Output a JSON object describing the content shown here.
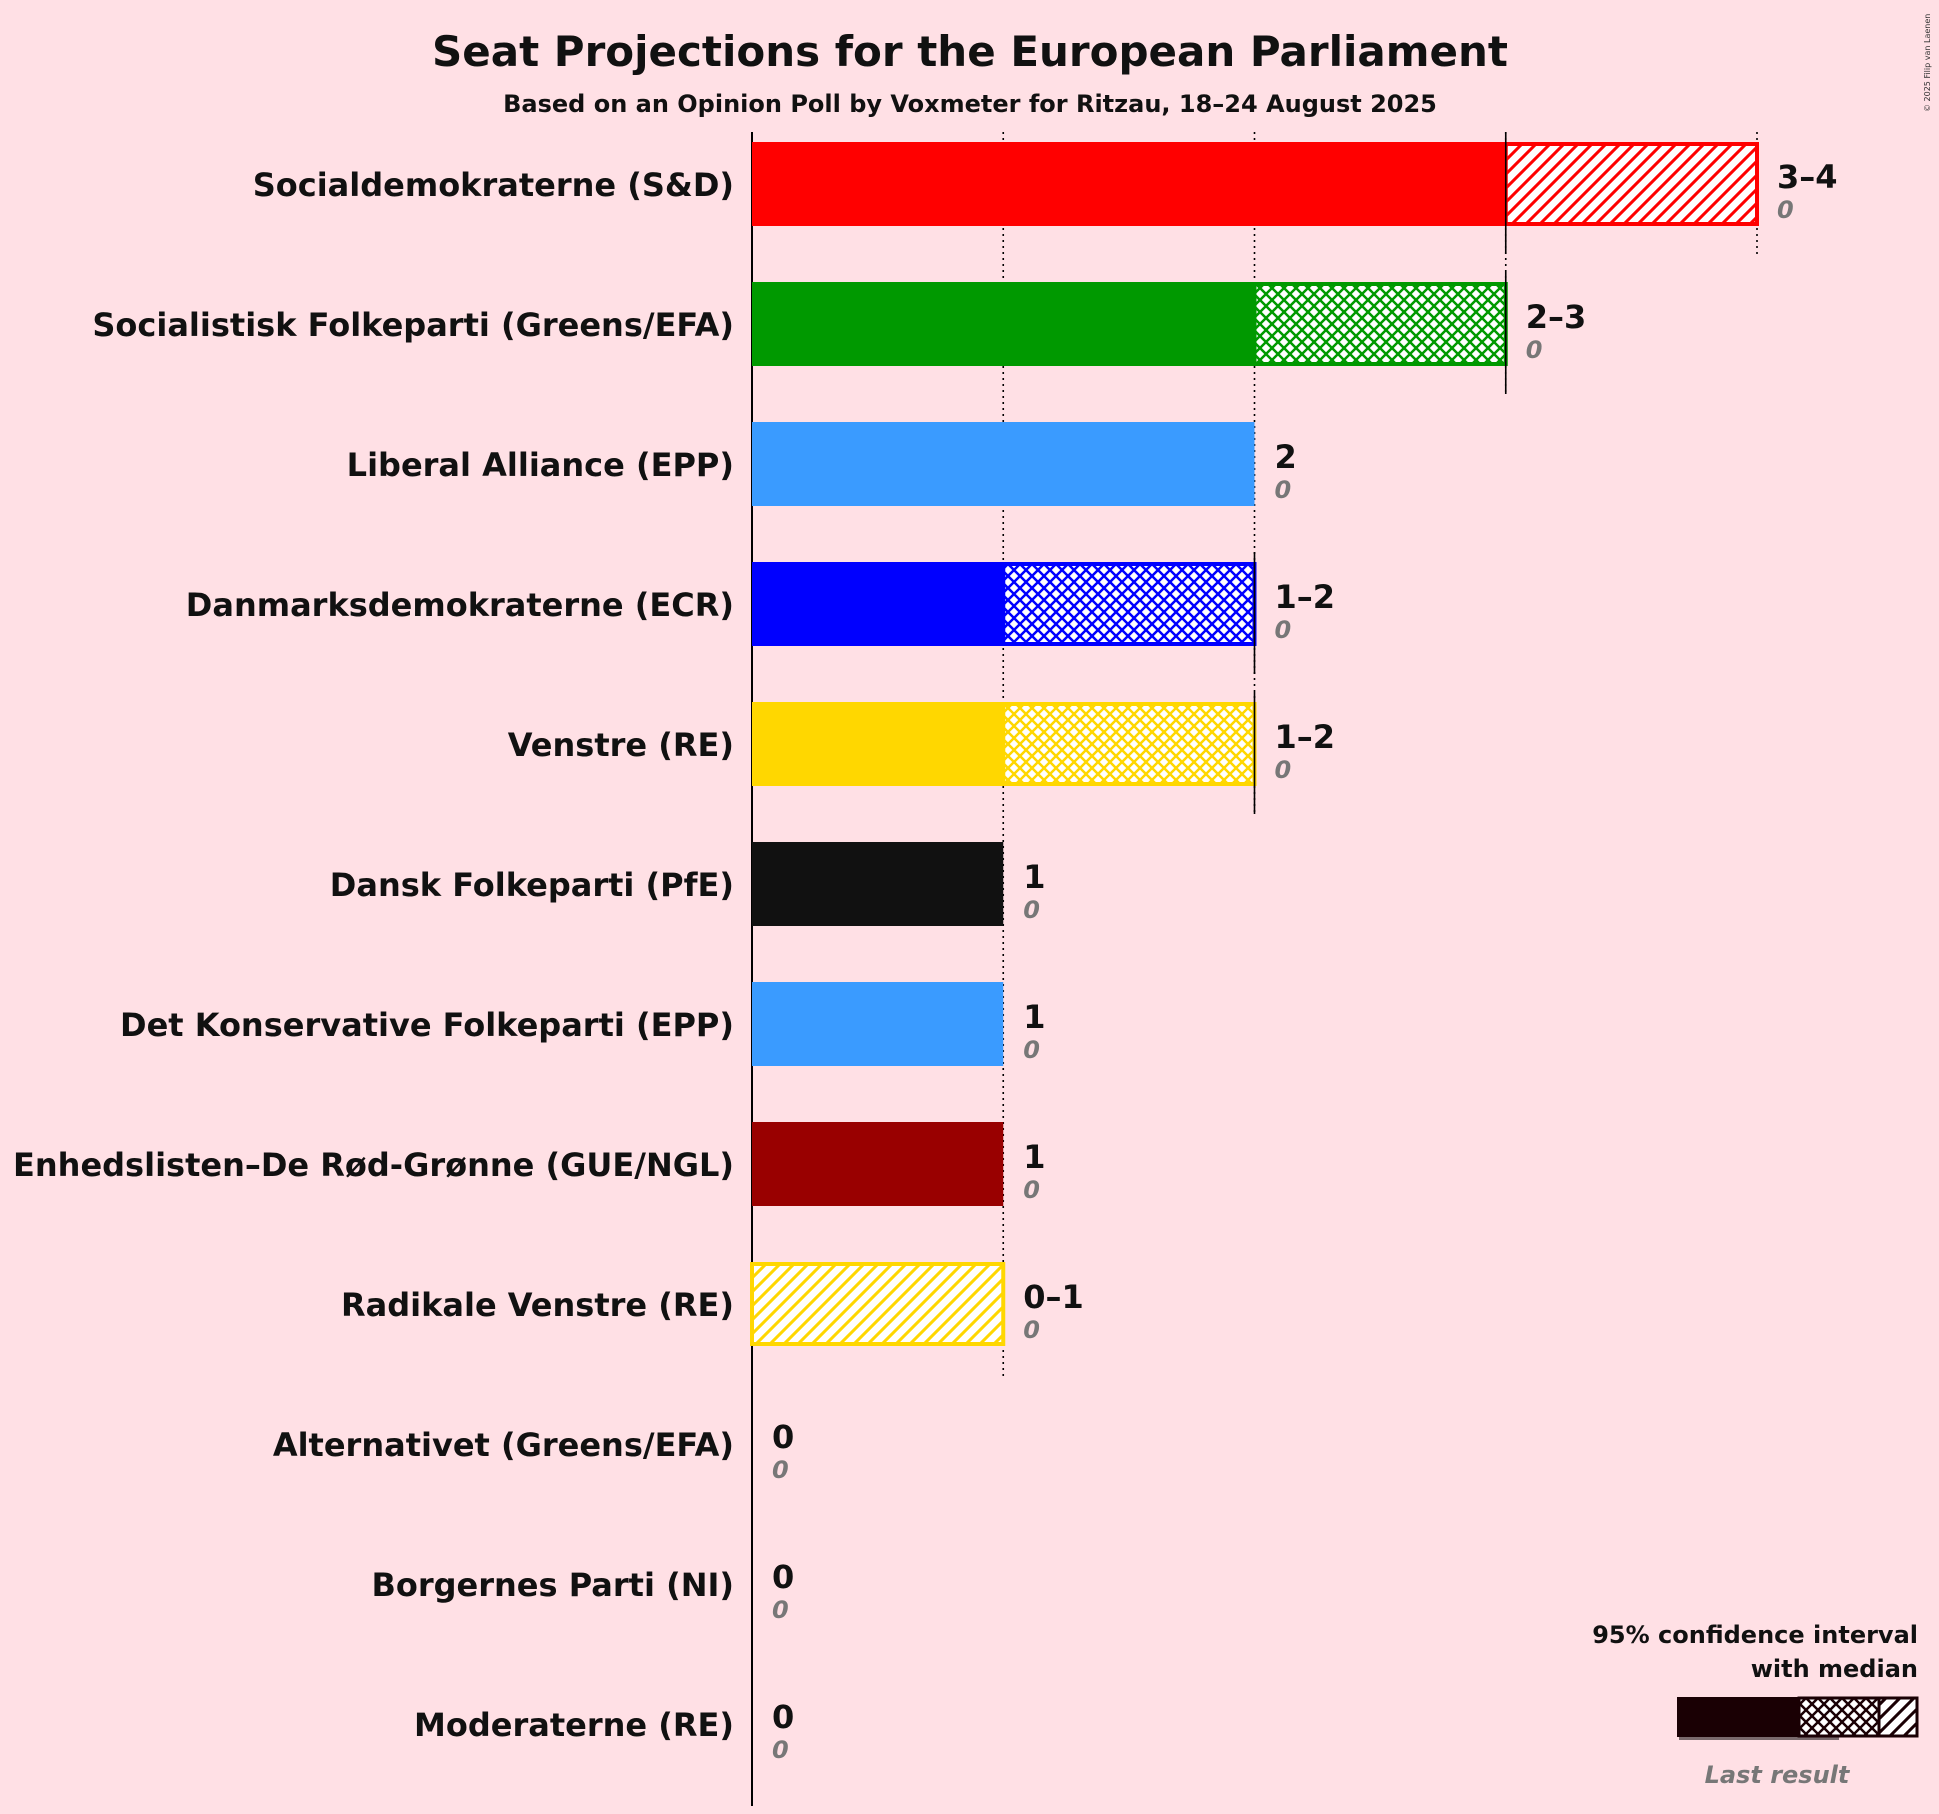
{
  "chart_data": {
    "type": "bar",
    "orientation": "horizontal",
    "title": "Seat Projections for the European Parliament",
    "subtitle": "Based on an Opinion Poll by Voxmeter for Ritzau, 18–24 August 2025",
    "copyright": "© 2025 Filip van Laenen",
    "xlim": [
      0,
      4
    ],
    "grid": "vertical lines at each seat",
    "legend": {
      "placement": "bottom-right",
      "title_line1": "95% confidence interval",
      "title_line2": "with median",
      "last_result_label": "Last result"
    },
    "categories": [
      "Socialdemokraterne (S&D)",
      "Socialistisk Folkeparti (Greens/EFA)",
      "Liberal Alliance (EPP)",
      "Danmarksdemokraterne (ECR)",
      "Venstre (RE)",
      "Dansk Folkeparti (PfE)",
      "Det Konservative Folkeparti (EPP)",
      "Enhedslisten–De Rød-Grønne (GUE/NGL)",
      "Radikale Venstre (RE)",
      "Alternativet (Greens/EFA)",
      "Borgernes Parti (NI)",
      "Moderaterne (RE)"
    ],
    "series": [
      {
        "party": "Socialdemokraterne (S&D)",
        "low": 3,
        "median": 3,
        "high": 4,
        "range_label": "3–4",
        "last_result": 0,
        "last_label": "0",
        "color": "#FF0000",
        "median_hatch": "none",
        "upper_hatch": "diagonal",
        "hatch_color": "#FF0000"
      },
      {
        "party": "Socialistisk Folkeparti (Greens/EFA)",
        "low": 2,
        "median": 3,
        "high": 3,
        "range_label": "2–3",
        "last_result": 0,
        "last_label": "0",
        "color": "#009900",
        "median_hatch": "cross",
        "upper_hatch": "none",
        "hatch_color": "#009900"
      },
      {
        "party": "Liberal Alliance (EPP)",
        "low": 2,
        "median": 2,
        "high": 2,
        "range_label": "2",
        "last_result": 0,
        "last_label": "0",
        "color": "#3A9BFF",
        "median_hatch": "none",
        "upper_hatch": "none",
        "hatch_color": "#3A9BFF"
      },
      {
        "party": "Danmarksdemokraterne (ECR)",
        "low": 1,
        "median": 2,
        "high": 2,
        "range_label": "1–2",
        "last_result": 0,
        "last_label": "0",
        "color": "#0000FF",
        "median_hatch": "cross",
        "upper_hatch": "none",
        "hatch_color": "#0000FF"
      },
      {
        "party": "Venstre (RE)",
        "low": 1,
        "median": 2,
        "high": 2,
        "range_label": "1–2",
        "last_result": 0,
        "last_label": "0",
        "color": "#FFD700",
        "median_hatch": "cross",
        "upper_hatch": "none",
        "hatch_color": "#FFD700"
      },
      {
        "party": "Dansk Folkeparti (PfE)",
        "low": 1,
        "median": 1,
        "high": 1,
        "range_label": "1",
        "last_result": 0,
        "last_label": "0",
        "color": "#111111",
        "median_hatch": "none",
        "upper_hatch": "none",
        "hatch_color": "#111111"
      },
      {
        "party": "Det Konservative Folkeparti (EPP)",
        "low": 1,
        "median": 1,
        "high": 1,
        "range_label": "1",
        "last_result": 0,
        "last_label": "0",
        "color": "#3A9BFF",
        "median_hatch": "none",
        "upper_hatch": "none",
        "hatch_color": "#3A9BFF"
      },
      {
        "party": "Enhedslisten–De Rød-Grønne (GUE/NGL)",
        "low": 1,
        "median": 1,
        "high": 1,
        "range_label": "1",
        "last_result": 0,
        "last_label": "0",
        "color": "#990000",
        "median_hatch": "none",
        "upper_hatch": "none",
        "hatch_color": "#990000"
      },
      {
        "party": "Radikale Venstre (RE)",
        "low": 0,
        "median": 0,
        "high": 1,
        "range_label": "0–1",
        "last_result": 0,
        "last_label": "0",
        "color": "#FFD700",
        "median_hatch": "none",
        "upper_hatch": "diagonal",
        "hatch_color": "#FFD700"
      },
      {
        "party": "Alternativet (Greens/EFA)",
        "low": 0,
        "median": 0,
        "high": 0,
        "range_label": "0",
        "last_result": 0,
        "last_label": "0",
        "color": "#009900",
        "median_hatch": "none",
        "upper_hatch": "none",
        "hatch_color": "#009900"
      },
      {
        "party": "Borgernes Parti (NI)",
        "low": 0,
        "median": 0,
        "high": 0,
        "range_label": "0",
        "last_result": 0,
        "last_label": "0",
        "color": "#00C9D3",
        "median_hatch": "none",
        "upper_hatch": "none",
        "hatch_color": "#00C9D3"
      },
      {
        "party": "Moderaterne (RE)",
        "low": 0,
        "median": 0,
        "high": 0,
        "range_label": "0",
        "last_result": 0,
        "last_label": "0",
        "color": "#8E44AD",
        "median_hatch": "none",
        "upper_hatch": "none",
        "hatch_color": "#8E44AD"
      }
    ]
  }
}
